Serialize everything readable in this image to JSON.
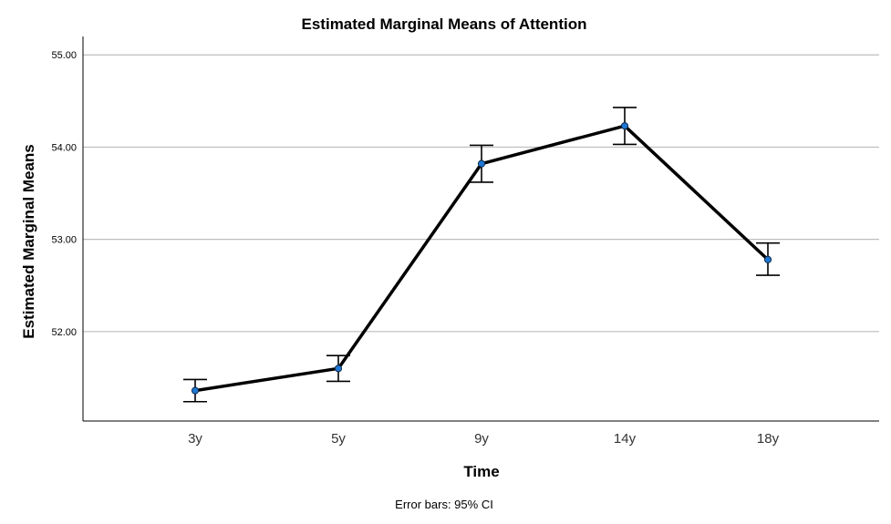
{
  "chart_data": {
    "type": "line",
    "title": "Estimated Marginal Means of Attention",
    "xlabel": "Time",
    "ylabel": "Estimated Marginal Means",
    "categories": [
      "3y",
      "5y",
      "9y",
      "14y",
      "18y"
    ],
    "values": [
      51.36,
      51.6,
      53.82,
      54.23,
      52.78
    ],
    "error_low": [
      51.24,
      51.46,
      53.62,
      54.03,
      52.61
    ],
    "error_high": [
      51.48,
      51.74,
      54.02,
      54.43,
      52.96
    ],
    "ylim": [
      51.03,
      55.2
    ],
    "yticks": [
      52.0,
      53.0,
      54.0,
      55.0
    ],
    "ytick_labels": [
      "52.00",
      "53.00",
      "54.00",
      "55.00"
    ],
    "grid": true,
    "footnote": "Error bars: 95% CI",
    "colors": {
      "line": "#000000",
      "marker": "#1f77d4",
      "grid": "#bdbdbd"
    }
  }
}
